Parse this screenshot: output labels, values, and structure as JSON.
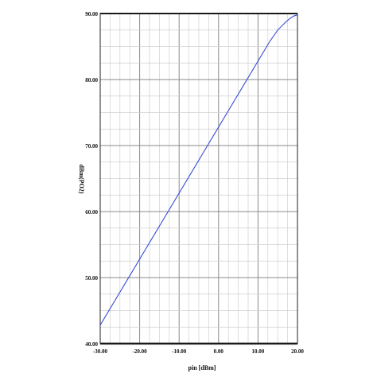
{
  "chart_data": {
    "type": "line",
    "xlabel": "pin [dBm]",
    "ylabel": "dBm(PO2)",
    "xlim": [
      -30,
      20
    ],
    "ylim": [
      40,
      90
    ],
    "grid": true,
    "x_tick_labels": [
      "-30.00",
      "-20.00",
      "-10.00",
      "0.00",
      "10.00",
      "20.00"
    ],
    "y_tick_labels": [
      "40.00",
      "50.00",
      "60.00",
      "70.00",
      "80.00",
      "90.00"
    ],
    "series": [
      {
        "color": "#3b4fd8",
        "x": [
          -30,
          -25,
          -20,
          -15,
          -10,
          -5,
          0,
          5,
          10,
          13,
          15,
          17,
          18,
          19,
          20
        ],
        "y": [
          42.8,
          47.8,
          52.8,
          57.8,
          62.8,
          67.8,
          72.8,
          77.8,
          82.8,
          85.8,
          87.5,
          88.7,
          89.2,
          89.6,
          89.8
        ]
      }
    ]
  }
}
